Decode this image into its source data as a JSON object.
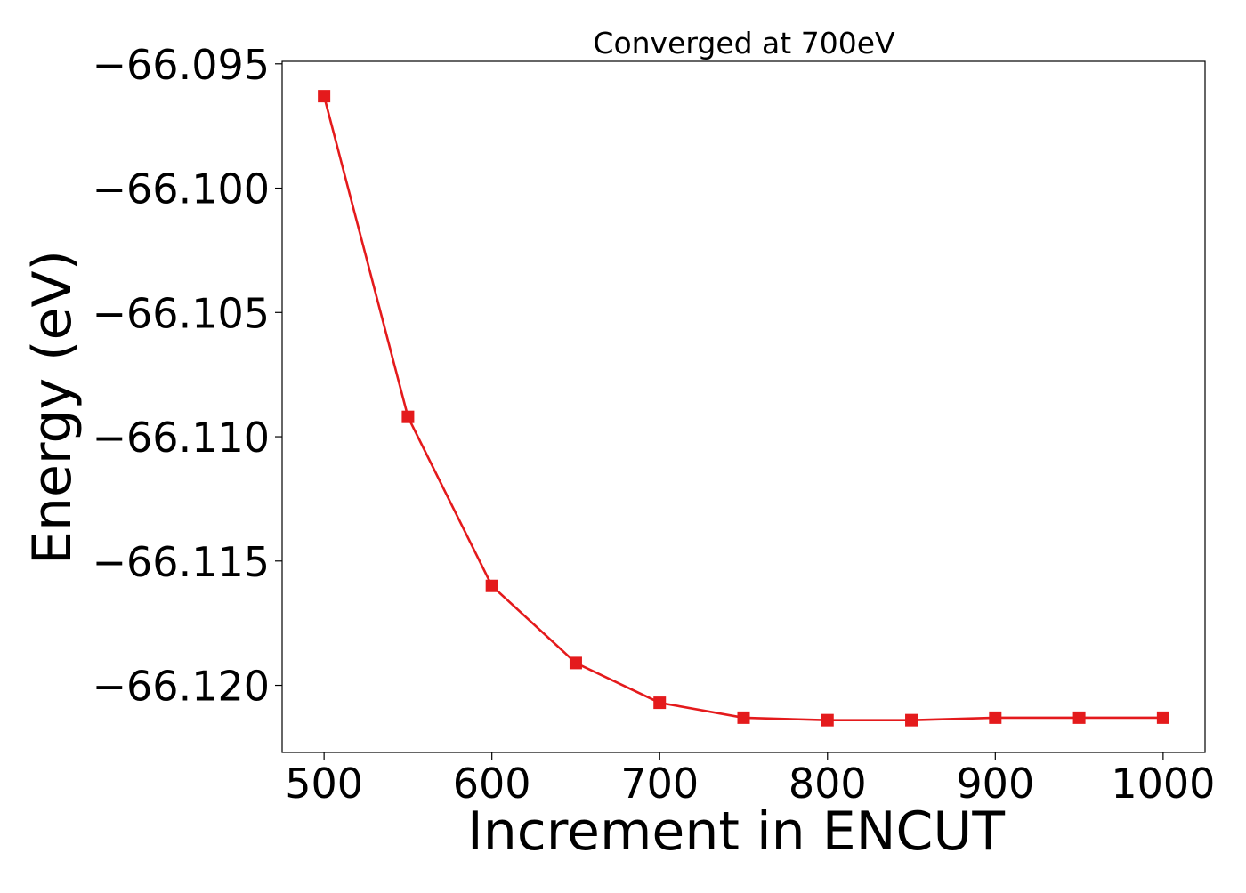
{
  "chart_data": {
    "type": "line",
    "title": "Converged at 700eV",
    "xlabel": "Increment in ENCUT",
    "ylabel": "Energy (eV)",
    "x": [
      500,
      550,
      600,
      650,
      700,
      750,
      800,
      850,
      900,
      950,
      1000
    ],
    "series": [
      {
        "values": [
          -66.0963,
          -66.1092,
          -66.116,
          -66.1191,
          -66.1207,
          -66.1213,
          -66.1214,
          -66.1214,
          -66.1213,
          -66.1213,
          -66.1213
        ]
      }
    ],
    "xlim": [
      475,
      1025
    ],
    "ylim": [
      -66.1227,
      -66.0949
    ],
    "x_ticks": [
      500,
      600,
      700,
      800,
      900,
      1000
    ],
    "y_ticks": [
      -66.12,
      -66.115,
      -66.11,
      -66.105,
      -66.1,
      -66.095
    ],
    "x_tick_labels": [
      "500",
      "600",
      "700",
      "800",
      "900",
      "1000"
    ],
    "y_tick_labels": [
      "−66.120",
      "−66.115",
      "−66.110",
      "−66.105",
      "−66.100",
      "−66.095"
    ],
    "grid": false,
    "legend": "none",
    "marker": "square",
    "colors": {
      "series": "#e41a1c",
      "axes": "#000000"
    }
  }
}
